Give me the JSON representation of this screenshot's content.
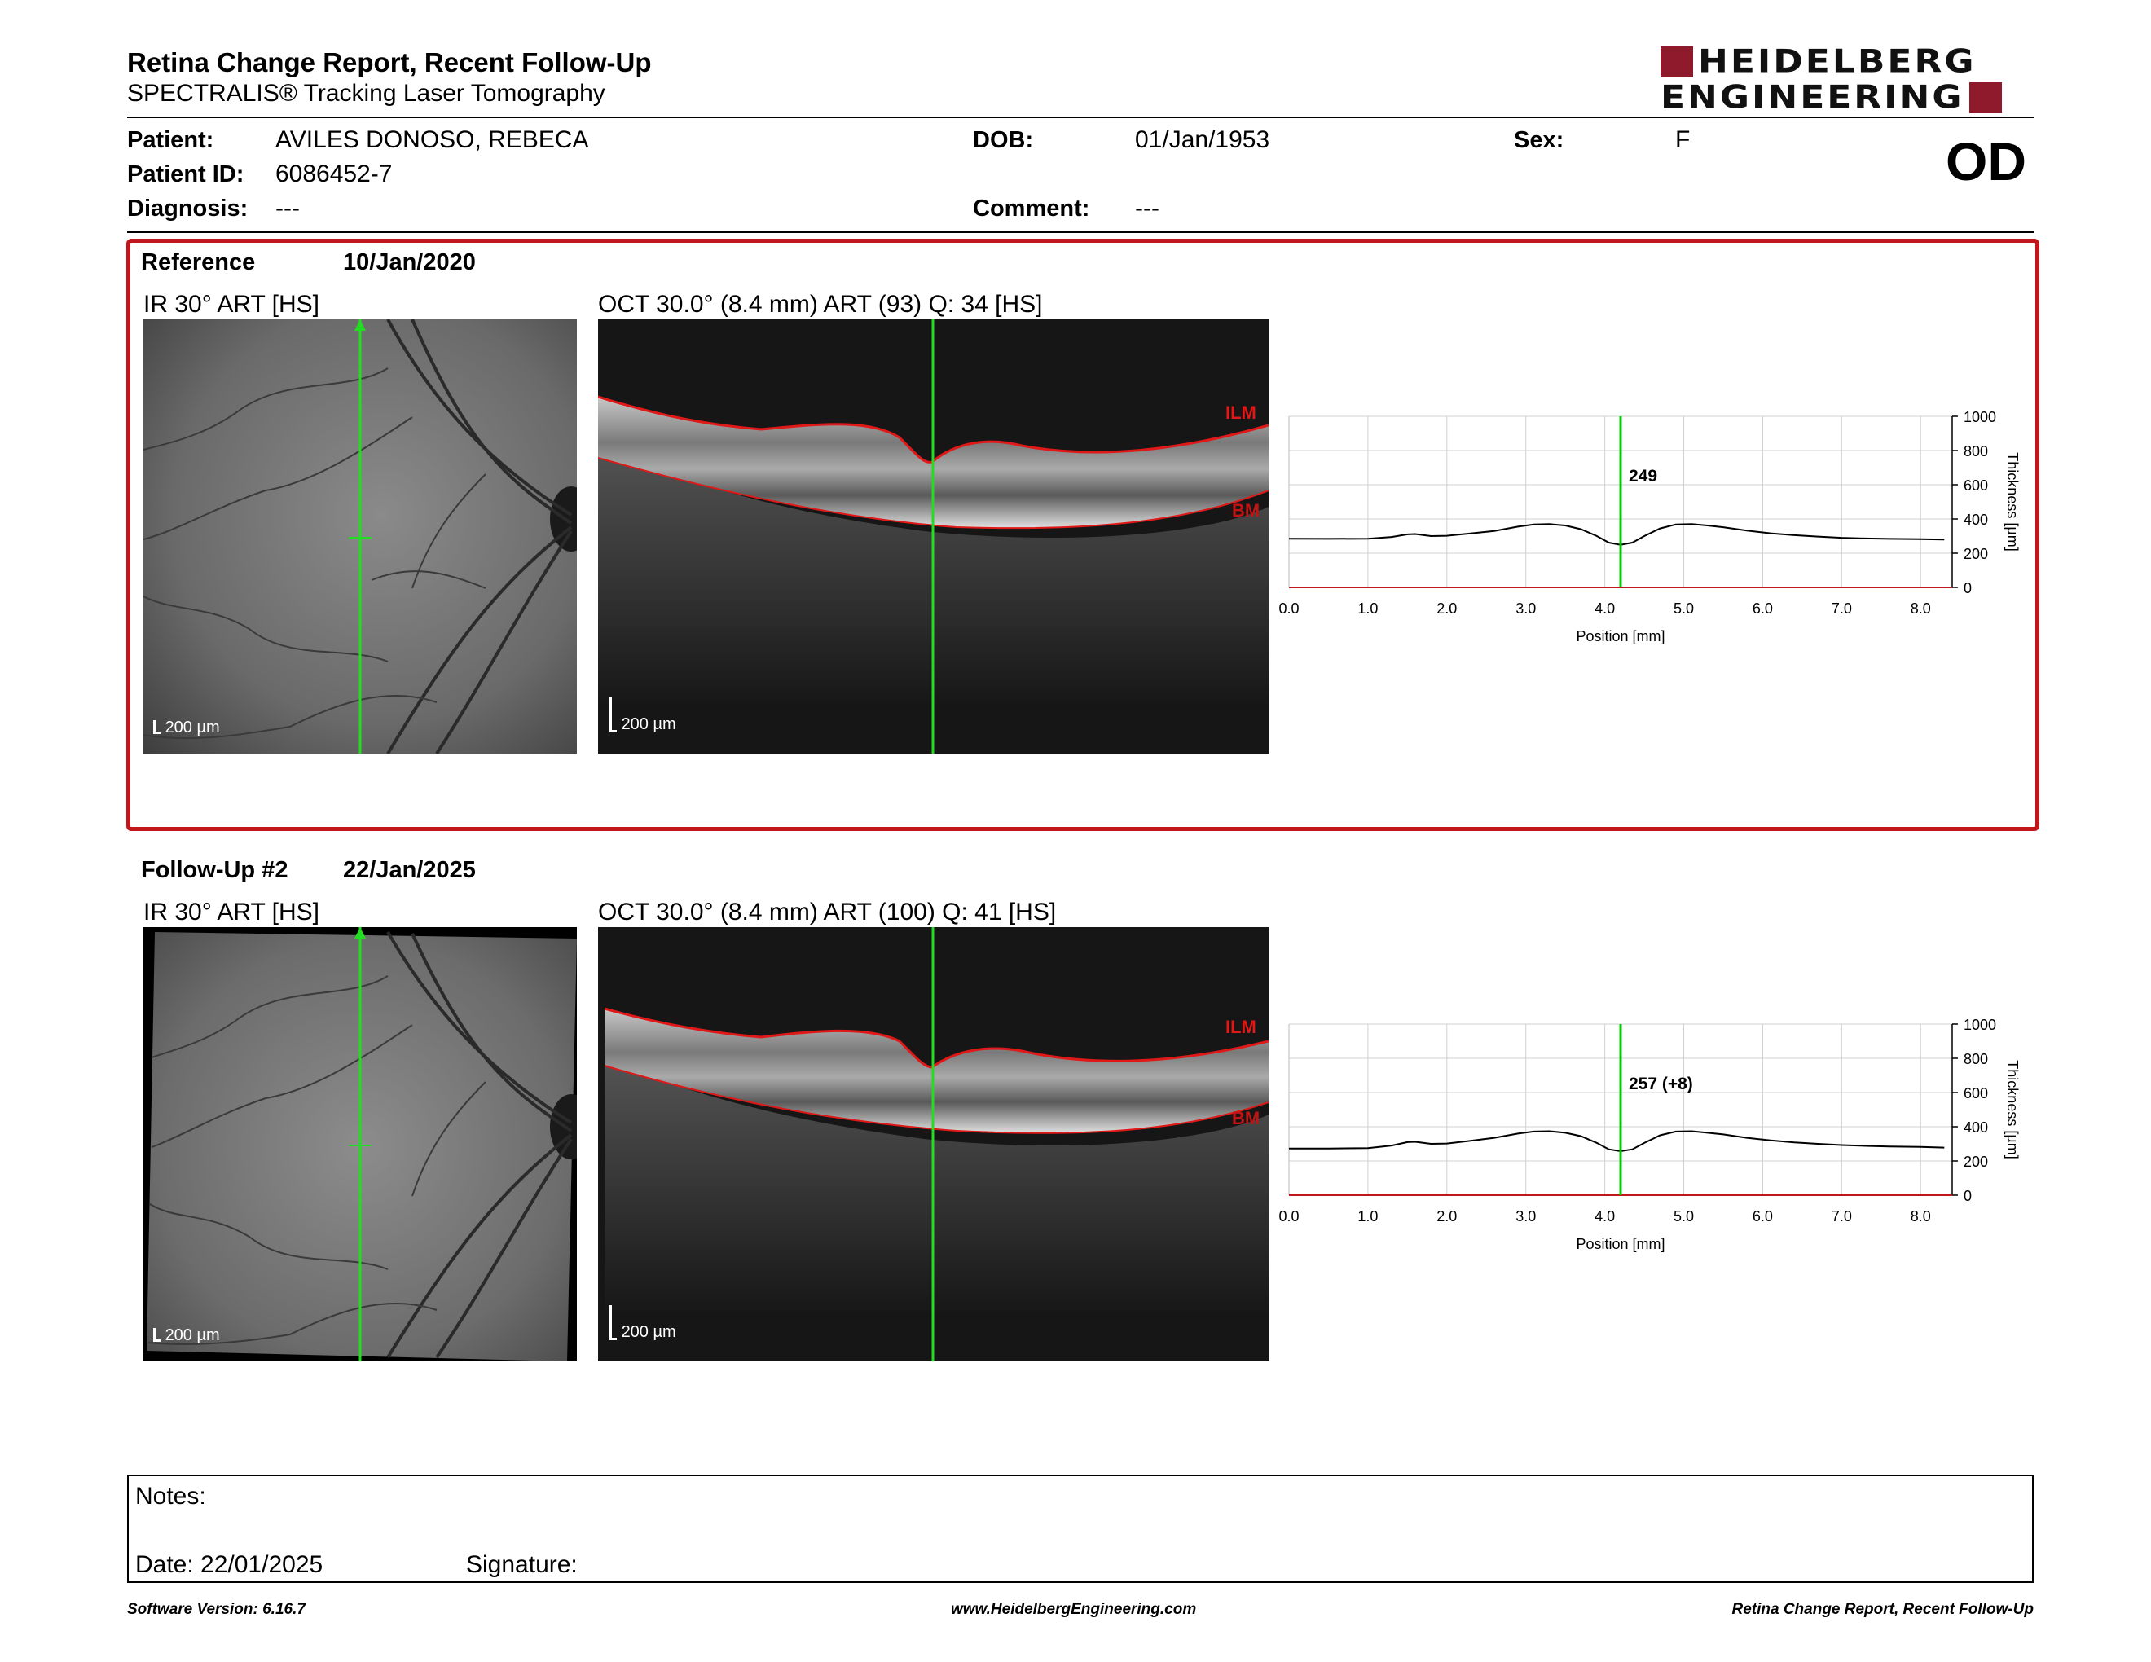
{
  "header": {
    "title": "Retina Change Report, Recent Follow-Up",
    "subtitle": "SPECTRALIS® Tracking Laser Tomography",
    "logo_line1": "HEIDELBERG",
    "logo_line2": "ENGINEERING",
    "eye": "OD"
  },
  "patient": {
    "patient_label": "Patient:",
    "patient_value": "AVILES DONOSO, REBECA",
    "id_label": "Patient ID:",
    "id_value": "6086452-7",
    "diagnosis_label": "Diagnosis:",
    "diagnosis_value": "---",
    "dob_label": "DOB:",
    "dob_value": "01/Jan/1953",
    "comment_label": "Comment:",
    "comment_value": "---",
    "sex_label": "Sex:",
    "sex_value": "F"
  },
  "reference": {
    "label": "Reference",
    "date": "10/Jan/2020",
    "ir_title": "IR 30° ART [HS]",
    "oct_title": "OCT 30.0° (8.4 mm) ART (93) Q: 34 [HS]",
    "scale_ir": "200 µm",
    "scale_oct": "200 µm",
    "ilm": "ILM",
    "bm": "BM"
  },
  "followup": {
    "label": "Follow-Up #2",
    "date": "22/Jan/2025",
    "ir_title": "IR 30° ART [HS]",
    "oct_title": "OCT 30.0° (8.4 mm) ART (100) Q: 41 [HS]",
    "scale_ir": "200 µm",
    "scale_oct": "200 µm",
    "ilm": "ILM",
    "bm": "BM"
  },
  "chart_data": [
    {
      "type": "line",
      "xlabel": "Position [mm]",
      "ylabel": "Thickness [µm]",
      "xlim": [
        0,
        8.4
      ],
      "ylim": [
        0,
        1000
      ],
      "x_ticks": [
        "0.0",
        "1.0",
        "2.0",
        "3.0",
        "4.0",
        "5.0",
        "6.0",
        "7.0",
        "8.0"
      ],
      "y_ticks": [
        "0",
        "200",
        "400",
        "600",
        "800",
        "1000"
      ],
      "cursor_x": 4.2,
      "cursor_label": "249",
      "grid": true,
      "colors": {
        "line": "#000000",
        "cursor": "#00cc00",
        "grid": "#d0d0d0",
        "baseline": "#c0161c"
      },
      "series": [
        {
          "x": [
            0,
            0.5,
            1,
            1.3,
            1.5,
            1.6,
            1.8,
            2,
            2.3,
            2.6,
            2.9,
            3.1,
            3.3,
            3.5,
            3.7,
            3.9,
            4.05,
            4.2,
            4.35,
            4.5,
            4.7,
            4.9,
            5.1,
            5.3,
            5.5,
            5.8,
            6.1,
            6.4,
            6.7,
            7,
            7.3,
            7.6,
            8,
            8.3
          ],
          "values": [
            285,
            284,
            285,
            295,
            310,
            312,
            300,
            302,
            315,
            330,
            355,
            368,
            370,
            362,
            340,
            300,
            262,
            249,
            262,
            300,
            345,
            368,
            370,
            362,
            352,
            332,
            316,
            305,
            297,
            290,
            286,
            284,
            282,
            280
          ]
        }
      ]
    },
    {
      "type": "line",
      "xlabel": "Position [mm]",
      "ylabel": "Thickness [µm]",
      "xlim": [
        0,
        8.4
      ],
      "ylim": [
        0,
        1000
      ],
      "x_ticks": [
        "0.0",
        "1.0",
        "2.0",
        "3.0",
        "4.0",
        "5.0",
        "6.0",
        "7.0",
        "8.0"
      ],
      "y_ticks": [
        "0",
        "200",
        "400",
        "600",
        "800",
        "1000"
      ],
      "cursor_x": 4.2,
      "cursor_label": "257 (+8)",
      "grid": true,
      "colors": {
        "line": "#000000",
        "cursor": "#00cc00",
        "grid": "#d0d0d0",
        "baseline": "#c0161c"
      },
      "series": [
        {
          "x": [
            0,
            0.5,
            1,
            1.3,
            1.5,
            1.6,
            1.8,
            2,
            2.3,
            2.6,
            2.9,
            3.1,
            3.3,
            3.5,
            3.7,
            3.9,
            4.05,
            4.2,
            4.35,
            4.5,
            4.7,
            4.9,
            5.1,
            5.3,
            5.5,
            5.8,
            6.1,
            6.4,
            6.7,
            7,
            7.3,
            7.6,
            8,
            8.3
          ],
          "values": [
            273,
            273,
            275,
            290,
            310,
            312,
            300,
            302,
            318,
            335,
            360,
            372,
            374,
            365,
            345,
            305,
            268,
            257,
            268,
            305,
            350,
            372,
            374,
            365,
            355,
            335,
            320,
            308,
            300,
            293,
            288,
            285,
            282,
            278
          ]
        }
      ]
    }
  ],
  "notes": {
    "notes_label": "Notes:",
    "date_label": "Date: 22/01/2025",
    "signature_label": "Signature:"
  },
  "footer": {
    "left": "Software Version: 6.16.7",
    "center": "www.HeidelbergEngineering.com",
    "right": "Retina Change Report, Recent Follow-Up"
  }
}
